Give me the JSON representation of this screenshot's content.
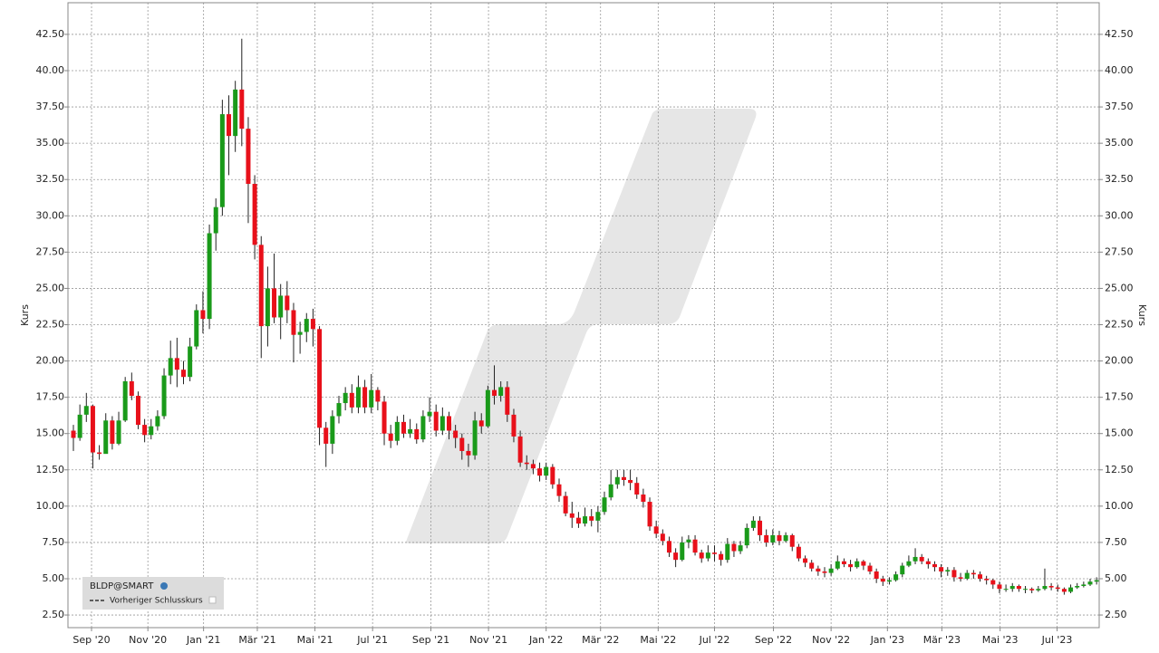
{
  "chart_data": {
    "type": "candlestick",
    "y_label": "Kurs",
    "y2_label": "Kurs",
    "series": [
      {
        "name": "BLDP@SMART",
        "up_color": "#1a9a1a",
        "down_color": "#e8101a",
        "open": [
          15.2,
          14.7,
          16.3,
          16.9,
          13.7,
          13.6,
          15.9,
          14.3,
          15.9,
          18.6,
          17.6,
          15.6,
          14.9,
          15.5,
          16.2,
          19.0,
          20.2,
          19.4,
          18.9,
          21.0,
          23.5,
          22.9,
          28.8,
          30.6,
          37.0,
          35.5,
          38.7,
          36.0,
          32.2,
          28.0,
          22.4,
          25.0,
          23.0,
          24.5,
          23.5,
          21.8,
          22.0,
          22.9,
          22.2,
          15.4,
          14.3,
          16.2,
          17.1,
          17.8,
          16.8,
          18.2,
          16.8,
          18.0,
          17.2,
          15.0,
          14.5,
          15.8,
          15.0,
          15.3,
          14.6,
          16.2,
          16.5,
          15.2,
          16.2,
          15.2,
          14.7,
          13.8,
          13.5,
          15.9,
          15.5,
          18.0,
          17.6,
          18.2,
          16.3,
          14.8,
          13.0,
          12.9,
          12.6,
          12.1,
          12.7,
          11.5,
          10.7,
          9.5,
          9.2,
          8.8,
          9.3,
          9.0,
          9.6,
          10.6,
          11.5,
          12.0,
          11.8,
          11.6,
          10.8,
          10.3,
          8.6,
          8.1,
          7.6,
          6.8,
          6.3,
          7.5,
          7.7,
          6.8,
          6.4,
          6.8,
          6.7,
          6.3,
          7.4,
          6.9,
          7.3,
          8.5,
          9.0,
          8.0,
          7.5,
          8.0,
          7.6,
          8.0,
          7.2,
          6.4,
          6.1,
          5.7,
          5.5,
          5.4,
          5.7,
          6.2,
          6.0,
          5.8,
          6.2,
          5.9,
          5.5,
          5.0,
          4.8,
          4.9,
          5.3,
          5.9,
          6.2,
          6.5,
          6.2,
          6.0,
          5.8,
          5.5,
          5.6,
          5.1,
          5.0,
          5.4,
          5.3,
          5.0,
          4.9,
          4.6,
          4.3,
          4.3,
          4.5,
          4.3,
          4.3,
          4.2,
          4.3,
          4.5,
          4.4,
          4.3,
          4.1,
          4.4,
          4.5,
          4.6,
          4.8
        ],
        "high": [
          15.6,
          17.0,
          17.8,
          17.0,
          14.2,
          16.4,
          16.2,
          16.5,
          18.9,
          19.2,
          17.9,
          16.0,
          16.0,
          16.6,
          19.5,
          21.4,
          21.6,
          20.0,
          21.6,
          23.9,
          24.8,
          29.4,
          31.2,
          38.0,
          38.3,
          39.3,
          42.2,
          36.8,
          32.8,
          28.6,
          26.5,
          27.4,
          25.3,
          25.5,
          24.0,
          22.7,
          23.3,
          23.6,
          22.4,
          15.8,
          16.6,
          17.6,
          18.2,
          18.4,
          19.0,
          18.7,
          19.1,
          18.2,
          17.6,
          15.6,
          16.2,
          16.3,
          16.0,
          15.7,
          16.6,
          17.5,
          17.0,
          16.8,
          16.5,
          15.6,
          15.0,
          14.3,
          16.5,
          16.4,
          18.3,
          19.7,
          18.6,
          18.6,
          16.7,
          15.2,
          13.5,
          13.2,
          13.0,
          13.0,
          12.9,
          11.9,
          11.0,
          10.3,
          9.6,
          9.9,
          9.8,
          10.0,
          11.0,
          12.5,
          12.5,
          12.5,
          12.5,
          12.0,
          11.2,
          10.6,
          9.0,
          8.4,
          7.9,
          7.1,
          7.9,
          8.0,
          8.0,
          7.0,
          7.3,
          7.3,
          6.9,
          7.8,
          7.6,
          7.6,
          8.8,
          9.3,
          9.3,
          8.4,
          8.4,
          8.3,
          8.2,
          8.1,
          7.4,
          6.6,
          6.3,
          5.9,
          5.8,
          6.0,
          6.6,
          6.4,
          6.3,
          6.4,
          6.3,
          6.1,
          5.7,
          5.2,
          5.1,
          5.5,
          6.1,
          6.6,
          7.1,
          6.7,
          6.4,
          6.2,
          6.0,
          5.8,
          5.8,
          5.4,
          5.6,
          5.6,
          5.5,
          5.2,
          5.0,
          4.8,
          4.6,
          4.7,
          4.6,
          4.5,
          4.4,
          4.5,
          5.7,
          4.7,
          4.6,
          4.4,
          4.6,
          4.7,
          4.8,
          5.0,
          5.1
        ],
        "low": [
          13.8,
          14.5,
          15.8,
          12.6,
          13.2,
          13.9,
          13.9,
          14.2,
          15.8,
          17.3,
          15.3,
          14.4,
          14.6,
          15.2,
          16.0,
          18.4,
          18.2,
          18.4,
          18.6,
          20.8,
          21.9,
          22.2,
          27.6,
          30.0,
          32.8,
          34.4,
          34.8,
          29.5,
          27.0,
          20.2,
          21.0,
          22.6,
          21.5,
          22.6,
          19.9,
          20.5,
          21.3,
          21.0,
          14.2,
          12.7,
          13.6,
          15.7,
          16.6,
          16.4,
          16.4,
          16.4,
          16.4,
          16.6,
          14.2,
          14.0,
          14.2,
          14.7,
          14.7,
          14.3,
          14.4,
          15.8,
          14.8,
          14.9,
          14.6,
          14.0,
          13.2,
          12.7,
          13.2,
          15.0,
          15.4,
          17.0,
          17.2,
          15.8,
          14.4,
          12.7,
          12.5,
          12.2,
          11.7,
          11.8,
          11.2,
          10.3,
          9.3,
          8.5,
          8.5,
          8.6,
          8.6,
          8.2,
          9.4,
          10.4,
          11.2,
          11.4,
          11.1,
          10.5,
          9.9,
          8.3,
          7.8,
          7.3,
          6.5,
          5.8,
          6.2,
          7.1,
          6.6,
          6.1,
          6.2,
          6.2,
          5.9,
          6.1,
          6.5,
          6.7,
          7.1,
          8.3,
          7.6,
          7.2,
          7.3,
          7.3,
          7.5,
          6.9,
          6.2,
          5.8,
          5.5,
          5.2,
          5.1,
          5.2,
          5.6,
          5.8,
          5.5,
          5.7,
          5.6,
          5.3,
          4.7,
          4.5,
          4.6,
          4.8,
          5.1,
          5.8,
          6.0,
          6.0,
          5.7,
          5.5,
          5.1,
          5.2,
          4.8,
          4.8,
          4.9,
          5.0,
          4.8,
          4.6,
          4.3,
          4.0,
          4.1,
          4.1,
          4.1,
          4.0,
          4.0,
          4.1,
          4.2,
          4.2,
          4.1,
          3.9,
          4.0,
          4.3,
          4.4,
          4.5,
          4.6
        ],
        "close": [
          14.7,
          16.3,
          16.9,
          13.7,
          13.6,
          15.9,
          14.3,
          15.9,
          18.6,
          17.6,
          15.6,
          14.9,
          15.5,
          16.2,
          19.0,
          20.2,
          19.4,
          18.9,
          21.0,
          23.5,
          22.9,
          28.8,
          30.6,
          37.0,
          35.5,
          38.7,
          36.0,
          32.2,
          28.0,
          22.4,
          25.0,
          23.0,
          24.5,
          23.5,
          21.8,
          22.0,
          22.9,
          22.2,
          15.4,
          14.3,
          16.2,
          17.1,
          17.8,
          16.8,
          18.2,
          16.8,
          18.0,
          17.2,
          15.0,
          14.5,
          15.8,
          15.0,
          15.3,
          14.6,
          16.2,
          16.5,
          15.2,
          16.2,
          15.2,
          14.7,
          13.8,
          13.5,
          15.9,
          15.5,
          18.0,
          17.6,
          18.2,
          16.3,
          14.8,
          13.0,
          12.9,
          12.6,
          12.1,
          12.7,
          11.5,
          10.7,
          9.5,
          9.2,
          8.8,
          9.3,
          9.0,
          9.6,
          10.6,
          11.5,
          12.0,
          11.8,
          11.6,
          10.8,
          10.3,
          8.6,
          8.1,
          7.6,
          6.8,
          6.3,
          7.5,
          7.7,
          6.8,
          6.4,
          6.8,
          6.7,
          6.3,
          7.4,
          6.9,
          7.3,
          8.5,
          9.0,
          8.0,
          7.5,
          8.0,
          7.6,
          8.0,
          7.2,
          6.4,
          6.1,
          5.7,
          5.5,
          5.4,
          5.7,
          6.2,
          6.0,
          5.8,
          6.2,
          5.9,
          5.5,
          5.0,
          4.8,
          4.9,
          5.3,
          5.9,
          6.2,
          6.5,
          6.2,
          6.0,
          5.8,
          5.5,
          5.6,
          5.1,
          5.0,
          5.4,
          5.3,
          5.0,
          4.9,
          4.6,
          4.3,
          4.3,
          4.5,
          4.3,
          4.3,
          4.2,
          4.3,
          4.5,
          4.4,
          4.3,
          4.1,
          4.4,
          4.5,
          4.6,
          4.8,
          4.9
        ]
      }
    ],
    "reference_line_label": "Vorheriger Schlusskurs",
    "xlim": [
      -0.84,
      158.4
    ],
    "xticks": [
      {
        "value": 2.8,
        "label": "Sep '20"
      },
      {
        "value": 11.5,
        "label": "Nov '20"
      },
      {
        "value": 20.1,
        "label": "Jan '21"
      },
      {
        "value": 28.4,
        "label": "Mär '21"
      },
      {
        "value": 37.3,
        "label": "Mai '21"
      },
      {
        "value": 46.2,
        "label": "Jul '21"
      },
      {
        "value": 55.2,
        "label": "Sep '21"
      },
      {
        "value": 64.1,
        "label": "Nov '21"
      },
      {
        "value": 73.0,
        "label": "Jan '22"
      },
      {
        "value": 81.4,
        "label": "Mär '22"
      },
      {
        "value": 90.3,
        "label": "Mai '22"
      },
      {
        "value": 99.0,
        "label": "Jul '22"
      },
      {
        "value": 108.1,
        "label": "Sep '22"
      },
      {
        "value": 117.0,
        "label": "Nov '22"
      },
      {
        "value": 125.7,
        "label": "Jan '23"
      },
      {
        "value": 134.1,
        "label": "Mär '23"
      },
      {
        "value": 143.1,
        "label": "Mai '23"
      },
      {
        "value": 151.9,
        "label": "Jul '23"
      }
    ],
    "ylim": [
      1.63,
      44.68
    ],
    "yticks": [
      {
        "value": 2.5,
        "label": "2.50"
      },
      {
        "value": 5,
        "label": "5.00"
      },
      {
        "value": 7.5,
        "label": "7.50"
      },
      {
        "value": 10,
        "label": "10.00"
      },
      {
        "value": 12.5,
        "label": "12.50"
      },
      {
        "value": 15,
        "label": "15.00"
      },
      {
        "value": 17.5,
        "label": "17.50"
      },
      {
        "value": 20,
        "label": "20.00"
      },
      {
        "value": 22.5,
        "label": "22.50"
      },
      {
        "value": 25,
        "label": "25.00"
      },
      {
        "value": 27.5,
        "label": "27.50"
      },
      {
        "value": 30,
        "label": "30.00"
      },
      {
        "value": 32.5,
        "label": "32.50"
      },
      {
        "value": 35,
        "label": "35.00"
      },
      {
        "value": 37.5,
        "label": "37.50"
      },
      {
        "value": 40,
        "label": "40.00"
      },
      {
        "value": 42.5,
        "label": "42.50"
      }
    ],
    "y2lim": [
      1.63,
      44.68
    ],
    "y2ticks": [
      {
        "value": 2.5,
        "label": "2.50"
      },
      {
        "value": 5,
        "label": "5.00"
      },
      {
        "value": 7.5,
        "label": "7.50"
      },
      {
        "value": 10,
        "label": "10.00"
      },
      {
        "value": 12.5,
        "label": "12.50"
      },
      {
        "value": 15,
        "label": "15.00"
      },
      {
        "value": 17.5,
        "label": "17.50"
      },
      {
        "value": 20,
        "label": "20.00"
      },
      {
        "value": 22.5,
        "label": "22.50"
      },
      {
        "value": 25,
        "label": "25.00"
      },
      {
        "value": 27.5,
        "label": "27.50"
      },
      {
        "value": 30,
        "label": "30.00"
      },
      {
        "value": 32.5,
        "label": "32.50"
      },
      {
        "value": 35,
        "label": "35.00"
      },
      {
        "value": 37.5,
        "label": "37.50"
      },
      {
        "value": 40,
        "label": "40.00"
      },
      {
        "value": 42.5,
        "label": "42.50"
      }
    ],
    "grid": true
  }
}
